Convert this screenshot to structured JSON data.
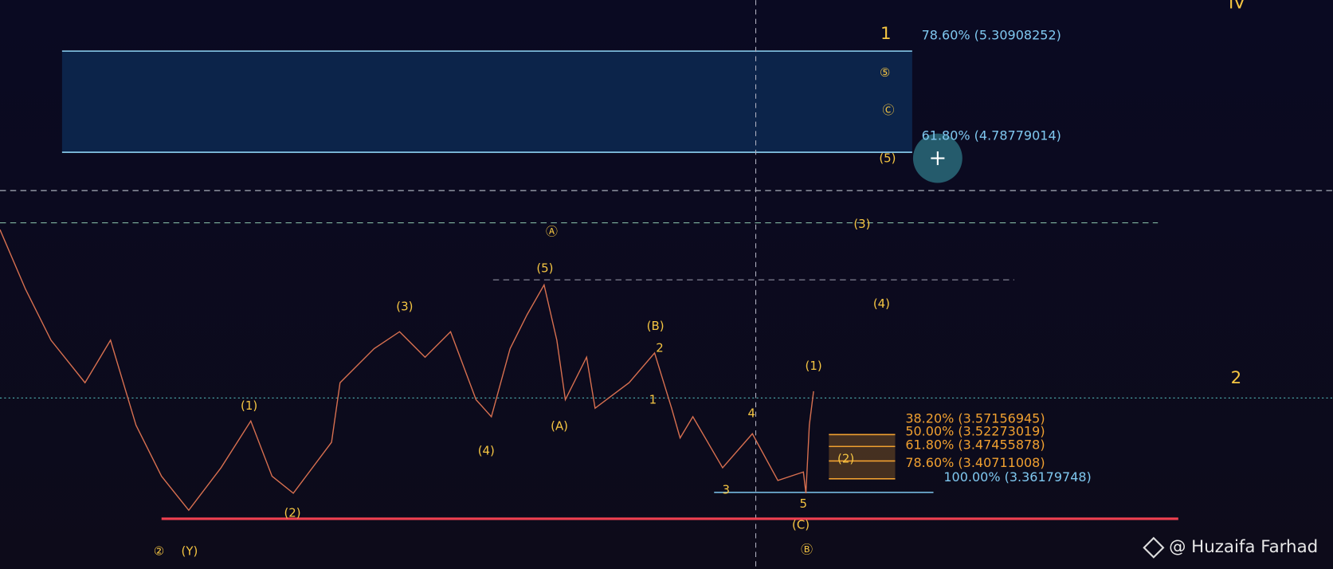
{
  "wave_labels": [
    "IV",
    "1",
    "⑤",
    "Ⓒ",
    "(5)",
    "(3)",
    "(4)",
    "(1)",
    "2",
    "Ⓐ",
    "(5)",
    "(3)",
    "(B)",
    "2",
    "1",
    "(1)",
    "(A)",
    "4",
    "(4)",
    "(2)",
    "3",
    "5",
    "(2)",
    "(C)",
    "②",
    "(Y)",
    "Ⓑ"
  ],
  "fib_upper": [
    "78.60% (5.30908252)",
    "61.80% (4.78779014)"
  ],
  "fib_lower": [
    "38.20% (3.57156945)",
    "50.00% (3.52273019)",
    "61.80% (3.47455878)",
    "78.60% (3.40711008)"
  ],
  "fib_lower_base": "100.00% (3.36179748)",
  "watermark": "@ Huzaifa Farhad"
}
